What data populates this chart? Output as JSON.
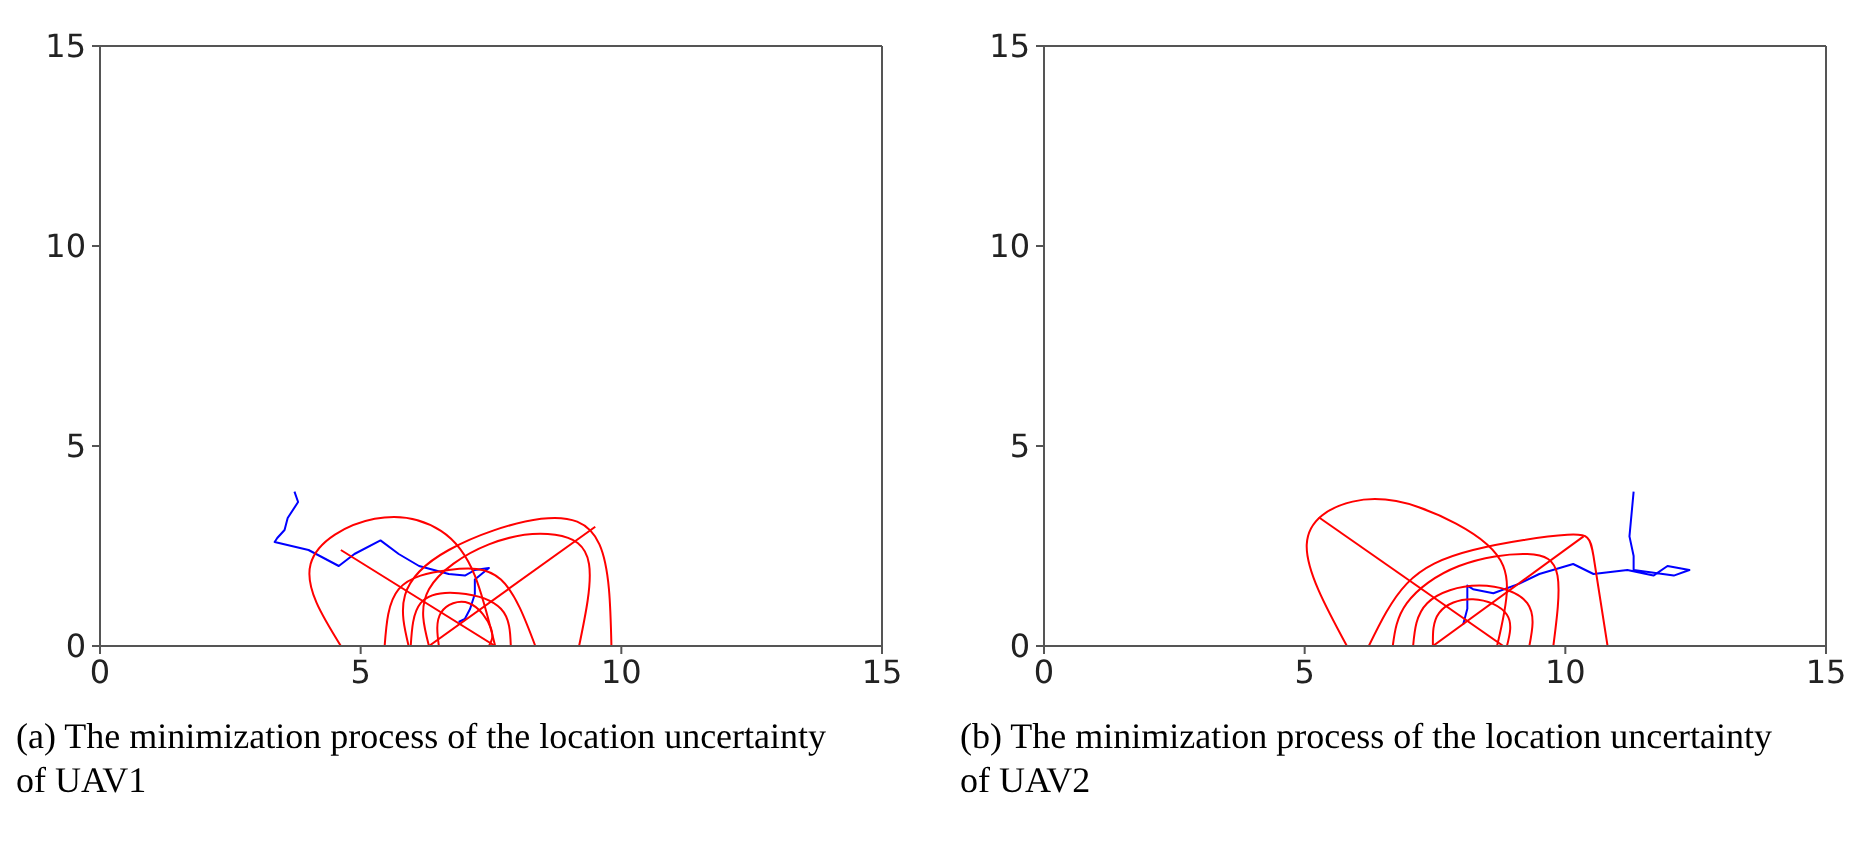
{
  "chart_data": [
    {
      "type": "line",
      "xlim": [
        0,
        15
      ],
      "ylim": [
        0,
        15
      ],
      "xticks": [
        0,
        5,
        10,
        15
      ],
      "yticks": [
        0,
        5,
        10,
        15
      ],
      "grid": false,
      "annotations": [
        "(a) The minimization process of the location uncertainty of UAV1"
      ],
      "series": [
        {
          "color": "#0000ff",
          "x": [
            3.73,
            3.8,
            3.6,
            3.54,
            3.4,
            3.35,
            4.0,
            4.58,
            4.88,
            5.38,
            5.73,
            6.12,
            6.69,
            7.0,
            7.19,
            7.46,
            7.19,
            7.19,
            7.1,
            7.0,
            6.88
          ],
          "values": [
            3.86,
            3.6,
            3.2,
            2.9,
            2.7,
            2.6,
            2.4,
            2.0,
            2.3,
            2.64,
            2.3,
            2.0,
            1.8,
            1.76,
            1.9,
            1.95,
            1.66,
            1.3,
            0.93,
            0.68,
            0.6
          ]
        },
        {
          "type": "line",
          "color": "#ff0000",
          "x": [
            4.62,
            4.04,
            5.27,
            6.54,
            7.19,
            7.58
          ],
          "values": [
            0,
            2.05,
            3.18,
            2.88,
            1.76,
            0
          ]
        },
        {
          "type": "line",
          "color": "#ff0000",
          "x": [
            5.92,
            5.85,
            6.69,
            8.46,
            9.58,
            9.81
          ],
          "values": [
            0,
            1.27,
            2.4,
            3.18,
            2.54,
            0
          ]
        },
        {
          "type": "line",
          "color": "#ff0000",
          "x": [
            6.31,
            6.31,
            7.46,
            8.73,
            9.38,
            9.19
          ],
          "values": [
            0,
            1.42,
            2.54,
            2.78,
            2.05,
            0
          ]
        },
        {
          "type": "line",
          "color": "#ff0000",
          "x": [
            5.46,
            5.73,
            6.69,
            7.69,
            8.35
          ],
          "values": [
            0,
            1.42,
            1.9,
            1.66,
            0
          ]
        },
        {
          "type": "line",
          "color": "#ff0000",
          "x": [
            5.96,
            6.15,
            6.88,
            7.69,
            7.88
          ],
          "values": [
            0,
            1.07,
            1.32,
            0.93,
            0
          ]
        },
        {
          "type": "line",
          "color": "#ff0000",
          "x": [
            6.5,
            6.54,
            7.08,
            7.5,
            7.46
          ],
          "values": [
            0,
            0.83,
            1.07,
            0.44,
            0
          ]
        },
        {
          "type": "line",
          "color": "#ff0000",
          "x": [
            4.62,
            7.58
          ],
          "values": [
            2.4,
            0
          ]
        },
        {
          "type": "line",
          "color": "#ff0000",
          "x": [
            6.31,
            9.5
          ],
          "values": [
            0,
            2.98
          ]
        }
      ]
    },
    {
      "type": "line",
      "xlim": [
        0,
        15
      ],
      "ylim": [
        0,
        15
      ],
      "xticks": [
        0,
        5,
        10,
        15
      ],
      "yticks": [
        0,
        5,
        10,
        15
      ],
      "grid": false,
      "annotations": [
        "(b) The minimization process of the location uncertainty of UAV2"
      ],
      "series": [
        {
          "color": "#0000ff",
          "x": [
            8.04,
            8.12,
            8.12,
            8.23,
            8.62,
            9.12,
            9.5,
            10.15,
            10.54,
            11.19,
            11.69,
            11.96,
            12.38,
            12.08,
            11.31,
            11.31,
            11.23,
            11.31
          ],
          "values": [
            0.54,
            0.93,
            1.51,
            1.42,
            1.32,
            1.56,
            1.8,
            2.05,
            1.8,
            1.9,
            1.76,
            2.0,
            1.9,
            1.76,
            1.9,
            2.25,
            2.74,
            3.86
          ]
        },
        {
          "type": "line",
          "color": "#ff0000",
          "x": [
            5.81,
            5.04,
            5.92,
            7.19,
            8.5,
            8.88,
            8.69
          ],
          "values": [
            0,
            2.54,
            3.61,
            3.47,
            2.54,
            1.42,
            0
          ]
        },
        {
          "type": "line",
          "color": "#ff0000",
          "x": [
            6.23,
            6.96,
            8.23,
            10.04,
            10.54,
            10.81
          ],
          "values": [
            0,
            1.56,
            2.4,
            2.78,
            2.25,
            0
          ]
        },
        {
          "type": "line",
          "color": "#ff0000",
          "x": [
            6.69,
            6.96,
            7.96,
            9.27,
            9.85,
            9.77
          ],
          "values": [
            0,
            1.07,
            2.0,
            2.3,
            1.76,
            0
          ]
        },
        {
          "type": "line",
          "color": "#ff0000",
          "x": [
            7.08,
            7.35,
            8.35,
            9.27,
            9.31
          ],
          "values": [
            0,
            1.07,
            1.51,
            1.07,
            0
          ]
        },
        {
          "type": "line",
          "color": "#ff0000",
          "x": [
            7.46,
            7.58,
            8.23,
            8.88,
            8.88
          ],
          "values": [
            0,
            0.83,
            1.17,
            0.78,
            0
          ]
        },
        {
          "type": "line",
          "color": "#ff0000",
          "x": [
            5.27,
            8.81
          ],
          "values": [
            3.22,
            0
          ]
        },
        {
          "type": "line",
          "color": "#ff0000",
          "x": [
            7.46,
            10.35
          ],
          "values": [
            0,
            2.74
          ]
        }
      ]
    }
  ]
}
